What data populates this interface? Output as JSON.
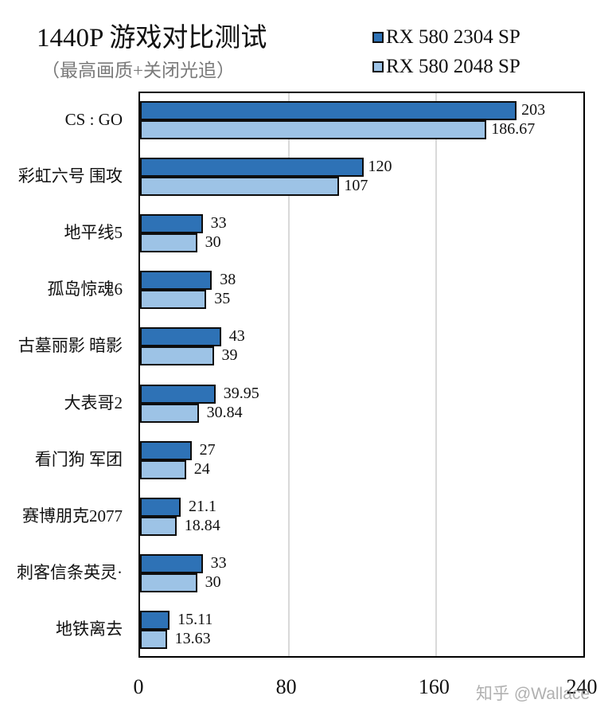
{
  "chart_data": {
    "type": "bar",
    "orientation": "horizontal",
    "title": "1440P 游戏对比测试",
    "subtitle": "（最高画质+关闭光追）",
    "xlabel": "",
    "ylabel": "",
    "xlim": [
      0,
      240
    ],
    "x_ticks": [
      "0",
      "80",
      "160",
      "240"
    ],
    "grid": true,
    "legend_position": "top-right",
    "categories": [
      "CS : GO",
      "彩虹六号 围攻",
      "地平线5",
      "孤岛惊魂6",
      "古墓丽影 暗影",
      "大表哥2",
      "看门狗 军团",
      "赛博朋克2077",
      "刺客信条英灵·",
      "地铁离去"
    ],
    "series": [
      {
        "name": "RX 580 2304 SP",
        "color": "#2e72b6",
        "values": [
          203,
          120,
          33,
          38,
          43,
          39.95,
          27,
          21.1,
          33,
          15.11
        ],
        "labels": [
          "203",
          "120",
          "33",
          "38",
          "43",
          "39.95",
          "27",
          "21.1",
          "33",
          "15.11"
        ]
      },
      {
        "name": "RX 580 2048 SP",
        "color": "#9dc3e6",
        "values": [
          186.67,
          107,
          30,
          35,
          39,
          30.84,
          24,
          18.84,
          30,
          13.63
        ],
        "labels": [
          "186.67",
          "107",
          "30",
          "35",
          "39",
          "30.84",
          "24",
          "18.84",
          "30",
          "13.63"
        ]
      }
    ]
  },
  "watermark": "知乎 @Wallace"
}
